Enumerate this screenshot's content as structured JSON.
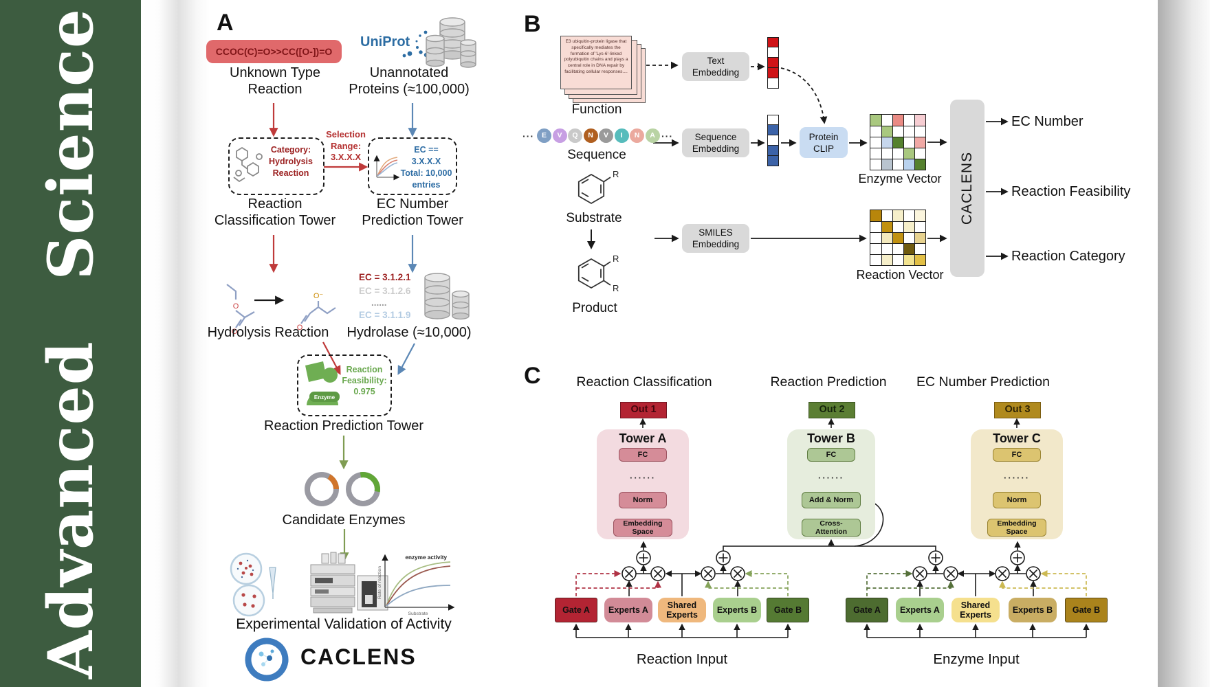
{
  "theme": {
    "sidebar_green": "#3d5c40",
    "page_bg": "#ffffff",
    "accent_red": "#bf3a3a",
    "accent_blue": "#5b87b5",
    "accent_green": "#7f9c52"
  },
  "sidebar": {
    "journal_name": "Advanced  Science"
  },
  "panelA": {
    "label": "A",
    "smiles_pill": "CCOC(C)=O>>CC([O-])=O",
    "uniprot": "UniProt",
    "unknown_reaction": "Unknown Type\nReaction",
    "unannotated_proteins": "Unannotated\nProteins (≈100,000)",
    "category_box": "Category:\nHydrolysis\nReaction",
    "selection_range": "Selection\nRange:\n3.X.X.X",
    "ec_box": "EC == 3.X.X.X\nTotal: 10,000\nentries",
    "classification_tower": "Reaction\nClassification Tower",
    "ec_tower": "EC Number\nPrediction Tower",
    "hydrolysis_reaction": "Hydrolysis Reaction",
    "ec_list": [
      {
        "text": "EC = 3.1.2.1",
        "color": "#9c1f1f"
      },
      {
        "text": "EC = 3.1.2.6",
        "color": "#cbcbcb"
      },
      {
        "text": "......",
        "color": "#9a9a9a"
      },
      {
        "text": "EC = 3.1.1.9",
        "color": "#b3cbe2"
      }
    ],
    "hydrolase": "Hydrolase (≈10,000)",
    "enzyme_icon_label": "Enzyme",
    "feasibility": "Reaction\nFeasibility:\n0.975",
    "prediction_tower": "Reaction Prediction Tower",
    "candidate_enzymes": "Candidate Enzymes",
    "activity_plot": {
      "curve_label": "enzyme activity",
      "ylabel": "Rate of reaction",
      "xlabel": "Substrate"
    },
    "validation": "Experimental Validation of Activity",
    "brand": "CACLENS"
  },
  "panelB": {
    "label": "B",
    "function_card": "E3 ubiquitin-protein ligase that specifically mediates the formation of 'Lys-6'-linked polyubiquitin chains and plays a central role in DNA repair by facilitating cellular responses....",
    "function_label": "Function",
    "sequence_label": "Sequence",
    "ellipsis": "···",
    "residues": [
      {
        "letter": "E",
        "color": "#7f9fc4"
      },
      {
        "letter": "V",
        "color": "#c79fe3"
      },
      {
        "letter": "Q",
        "color": "#c9c9c9"
      },
      {
        "letter": "N",
        "color": "#b05f20"
      },
      {
        "letter": "V",
        "color": "#9a9a9a"
      },
      {
        "letter": "I",
        "color": "#57bcbc"
      },
      {
        "letter": "N",
        "color": "#eba99e"
      },
      {
        "letter": "A",
        "color": "#b9d3a4"
      }
    ],
    "substrate_label": "Substrate",
    "product_label": "Product",
    "r_group": "R",
    "text_embedding": "Text\nEmbedding",
    "sequence_embedding": "Sequence\nEmbedding",
    "smiles_embedding": "SMILES\nEmbedding",
    "protein_clip": "Protein\nCLIP",
    "text_vector": [
      "#d01317",
      null,
      "#d01317",
      "#d01317",
      null
    ],
    "sequence_vector": [
      null,
      "#3c63a8",
      null,
      "#3c63a8",
      "#3c63a8"
    ],
    "enzyme_vector_label": "Enzyme Vector",
    "reaction_vector_label": "Reaction Vector",
    "enzyme_vector_cells": [
      "#a9c87f",
      null,
      "#e98b84",
      null,
      "#f6cdd2",
      null,
      "#a9c87f",
      null,
      null,
      null,
      null,
      "#c6d6ec",
      "#55812e",
      null,
      "#f0a9a5",
      null,
      null,
      null,
      "#a9c87f",
      null,
      null,
      "#b9c4cf",
      null,
      "#b9d2ee",
      "#55812e"
    ],
    "reaction_vector_cells": [
      "#b8860b",
      null,
      "#f6efca",
      null,
      "#fbf5dd",
      null,
      "#c19110",
      null,
      "#f6efca",
      null,
      null,
      "#f3e9bd",
      "#c19110",
      null,
      "#e7d28f",
      null,
      null,
      null,
      "#6f5a0e",
      null,
      null,
      "#f6efca",
      null,
      "#f2e390",
      "#e2bf45"
    ],
    "caclens": "CACLENS",
    "outputs": [
      "EC Number",
      "Reaction Feasibility",
      "Reaction Category"
    ]
  },
  "panelC": {
    "label": "C",
    "columns": [
      {
        "title": "Reaction Classification",
        "out": "Out 1",
        "tower": "Tower A",
        "fc": "FC",
        "dots": "······",
        "mid": "Norm",
        "bottom": "Embedding\nSpace",
        "palette": {
          "panel": "#f3dbe0",
          "box": "#d58c98",
          "box_border": "#9c5360",
          "out_bg": "#b32433",
          "out_border": "#721622",
          "out_text": "#42060d"
        }
      },
      {
        "title": "Reaction Prediction",
        "out": "Out 2",
        "tower": "Tower B",
        "fc": "FC",
        "dots": "······",
        "mid": "Add & Norm",
        "bottom": "Cross-\nAttention",
        "palette": {
          "panel": "#e6eddd",
          "box": "#adc795",
          "box_border": "#617e43",
          "out_bg": "#5b7e33",
          "out_border": "#3a5220",
          "out_text": "#15230b"
        }
      },
      {
        "title": "EC Number Prediction",
        "out": "Out 3",
        "tower": "Tower C",
        "fc": "FC",
        "dots": "······",
        "mid": "Norm",
        "bottom": "Embedding\nSpace",
        "palette": {
          "panel": "#f2e8ca",
          "box": "#dcc470",
          "box_border": "#9a8432",
          "out_bg": "#b08a1e",
          "out_border": "#7a5c10",
          "out_text": "#2f2405"
        }
      }
    ],
    "moe_groups": [
      {
        "input_label": "Reaction Input",
        "gate_a_dash": "#b03345",
        "gate_b_dash": "#85a35a",
        "boxes": [
          {
            "label": "Gate A",
            "bg": "#b32433"
          },
          {
            "label": "Experts A",
            "bg": "#d28b97"
          },
          {
            "label": "Shared\nExperts",
            "bg": "#efb87d"
          },
          {
            "label": "Experts B",
            "bg": "#a9cf8e"
          },
          {
            "label": "Gate B",
            "bg": "#557a33"
          }
        ]
      },
      {
        "input_label": "Enzyme Input",
        "gate_a_dash": "#55703a",
        "gate_b_dash": "#ccb952",
        "boxes": [
          {
            "label": "Gate A",
            "bg": "#4d6c30"
          },
          {
            "label": "Experts A",
            "bg": "#a9cf8e"
          },
          {
            "label": "Shared\nExperts",
            "bg": "#f5e08e"
          },
          {
            "label": "Experts B",
            "bg": "#c9ad63"
          },
          {
            "label": "Gate B",
            "bg": "#aa831c"
          }
        ]
      }
    ]
  }
}
